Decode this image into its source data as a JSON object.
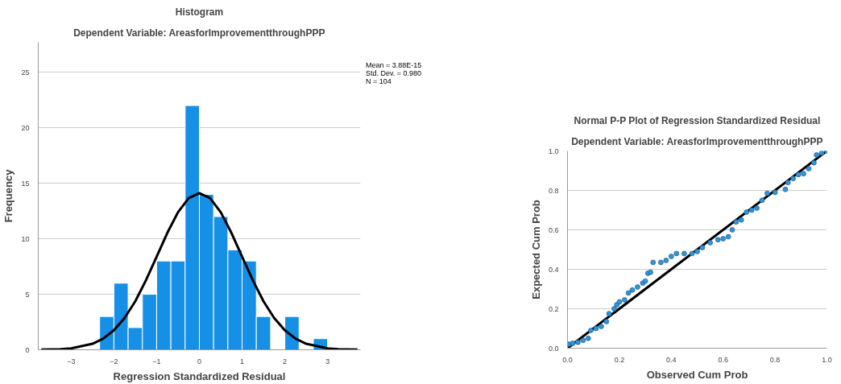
{
  "chart_data": [
    {
      "type": "histogram",
      "title": "Histogram",
      "subtitle": "Dependent Variable: AreasforImprovementthroughPPP",
      "xlabel": "Regression Standardized Residual",
      "ylabel": "Frequency",
      "bins": [
        -2.333,
        -2,
        -1.667,
        -1.333,
        -1,
        -0.667,
        -0.333,
        0,
        0.333,
        0.667,
        1,
        1.333,
        1.667,
        2,
        2.333,
        2.667,
        3
      ],
      "values": [
        3,
        6,
        2,
        5,
        8,
        8,
        22,
        14,
        12,
        9,
        8,
        3,
        0,
        3,
        0,
        1
      ],
      "color": "#1590e6",
      "series": [
        {
          "type": "line",
          "color": "#000000",
          "x": [
            -3.7,
            -3.25,
            -3,
            -2.5,
            -2.25,
            -2,
            -1.75,
            -1.5,
            -1.25,
            -1,
            -0.75,
            -0.5,
            -0.25,
            0,
            0.25,
            0.5,
            0.75,
            1,
            1.25,
            1.5,
            1.75,
            2,
            2.25,
            2.5,
            3,
            3.25,
            3.7
          ],
          "values": [
            0.01,
            0.06,
            0.13,
            0.54,
            1.01,
            1.76,
            2.86,
            4.37,
            6.26,
            8.38,
            10.53,
            12.39,
            13.66,
            14.11,
            13.66,
            12.39,
            10.53,
            8.38,
            6.26,
            4.37,
            2.86,
            1.76,
            1.01,
            0.54,
            0.13,
            0.06,
            0.01
          ]
        }
      ],
      "xlim": [
        -3.77,
        3.77
      ],
      "ylim": [
        0,
        27.7
      ],
      "xticks": [
        -3,
        -2,
        -1,
        0,
        1,
        2,
        3
      ],
      "yticks": [
        0,
        5,
        10,
        15,
        20,
        25
      ],
      "grid": "y",
      "annotations": [
        "Mean = 3.88E-15",
        "Std. Dev. = 0.980",
        "N = 104"
      ]
    },
    {
      "type": "scatter",
      "title": "Normal P-P Plot of Regression Standardized Residual",
      "subtitle": "Dependent Variable: AreasforImprovementthroughPPP",
      "xlabel": "Observed Cum Prob",
      "ylabel": "Expected Cum Prob",
      "series": [
        {
          "type": "scatter",
          "color": "#2f95dc",
          "marker": "circle",
          "x": [
            0.005,
            0.02,
            0.04,
            0.06,
            0.08,
            0.09,
            0.11,
            0.13,
            0.15,
            0.16,
            0.18,
            0.19,
            0.2,
            0.22,
            0.235,
            0.25,
            0.27,
            0.29,
            0.3,
            0.31,
            0.32,
            0.33,
            0.36,
            0.38,
            0.4,
            0.42,
            0.45,
            0.48,
            0.5,
            0.52,
            0.55,
            0.58,
            0.6,
            0.62,
            0.635,
            0.65,
            0.67,
            0.69,
            0.71,
            0.73,
            0.75,
            0.77,
            0.8,
            0.84,
            0.85,
            0.87,
            0.89,
            0.91,
            0.93,
            0.95,
            0.96,
            0.98,
            1.0
          ],
          "values": [
            0.02,
            0.025,
            0.03,
            0.04,
            0.05,
            0.09,
            0.1,
            0.11,
            0.135,
            0.175,
            0.2,
            0.22,
            0.235,
            0.245,
            0.28,
            0.295,
            0.31,
            0.33,
            0.34,
            0.38,
            0.385,
            0.435,
            0.435,
            0.445,
            0.465,
            0.48,
            0.48,
            0.48,
            0.49,
            0.51,
            0.535,
            0.55,
            0.555,
            0.565,
            0.6,
            0.64,
            0.65,
            0.69,
            0.7,
            0.71,
            0.75,
            0.785,
            0.79,
            0.805,
            0.84,
            0.86,
            0.88,
            0.885,
            0.91,
            0.94,
            0.98,
            0.99,
            1.0
          ]
        },
        {
          "type": "line",
          "color": "#000000",
          "x": [
            0,
            1
          ],
          "values": [
            0,
            1
          ]
        }
      ],
      "xlim": [
        0,
        1
      ],
      "ylim": [
        0,
        1
      ],
      "xticks": [
        {
          "value": 0,
          "label": "0.0"
        },
        {
          "value": 0.2,
          "label": "0.2"
        },
        {
          "value": 0.4,
          "label": "0.4"
        },
        {
          "value": 0.6,
          "label": "0.6"
        },
        {
          "value": 0.8,
          "label": "0.8"
        },
        {
          "value": 1,
          "label": "1.0"
        }
      ],
      "yticks": [
        {
          "value": 0,
          "label": "0.0"
        },
        {
          "value": 0.2,
          "label": "0.2"
        },
        {
          "value": 0.4,
          "label": "0.4"
        },
        {
          "value": 0.6,
          "label": "0.6"
        },
        {
          "value": 0.8,
          "label": "0.8"
        },
        {
          "value": 1,
          "label": "1.0"
        }
      ],
      "grid": "y"
    }
  ]
}
